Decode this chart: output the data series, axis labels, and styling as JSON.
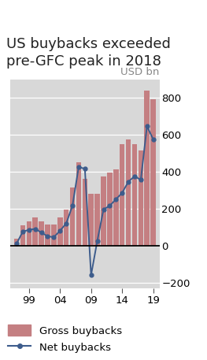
{
  "title": "US buybacks exceeded\npre-GFC peak in 2018",
  "ylabel": "USD bn",
  "background_color": "#d8d8d8",
  "years": [
    1997,
    1998,
    1999,
    2000,
    2001,
    2002,
    2003,
    2004,
    2005,
    2006,
    2007,
    2008,
    2009,
    2010,
    2011,
    2012,
    2013,
    2014,
    2015,
    2016,
    2017,
    2018,
    2019
  ],
  "gross_buybacks": [
    35,
    110,
    130,
    150,
    130,
    115,
    115,
    150,
    195,
    315,
    450,
    360,
    280,
    280,
    375,
    395,
    410,
    550,
    575,
    550,
    515,
    840,
    790
  ],
  "net_buybacks": [
    10,
    75,
    85,
    90,
    70,
    50,
    45,
    80,
    120,
    215,
    425,
    415,
    -160,
    25,
    195,
    215,
    250,
    285,
    345,
    375,
    355,
    645,
    575
  ],
  "gross_color": "#c47f82",
  "net_color": "#3d5c8c",
  "xlim": [
    1996.0,
    2020.0
  ],
  "ylim": [
    -230,
    900
  ],
  "yticks": [
    -200,
    0,
    200,
    400,
    600,
    800
  ],
  "xtick_years": [
    1999,
    2004,
    2009,
    2014,
    2019
  ],
  "xtick_labels": [
    "99",
    "04",
    "09",
    "14",
    "19"
  ],
  "title_fontsize": 13,
  "label_fontsize": 9.5,
  "tick_fontsize": 9.5
}
